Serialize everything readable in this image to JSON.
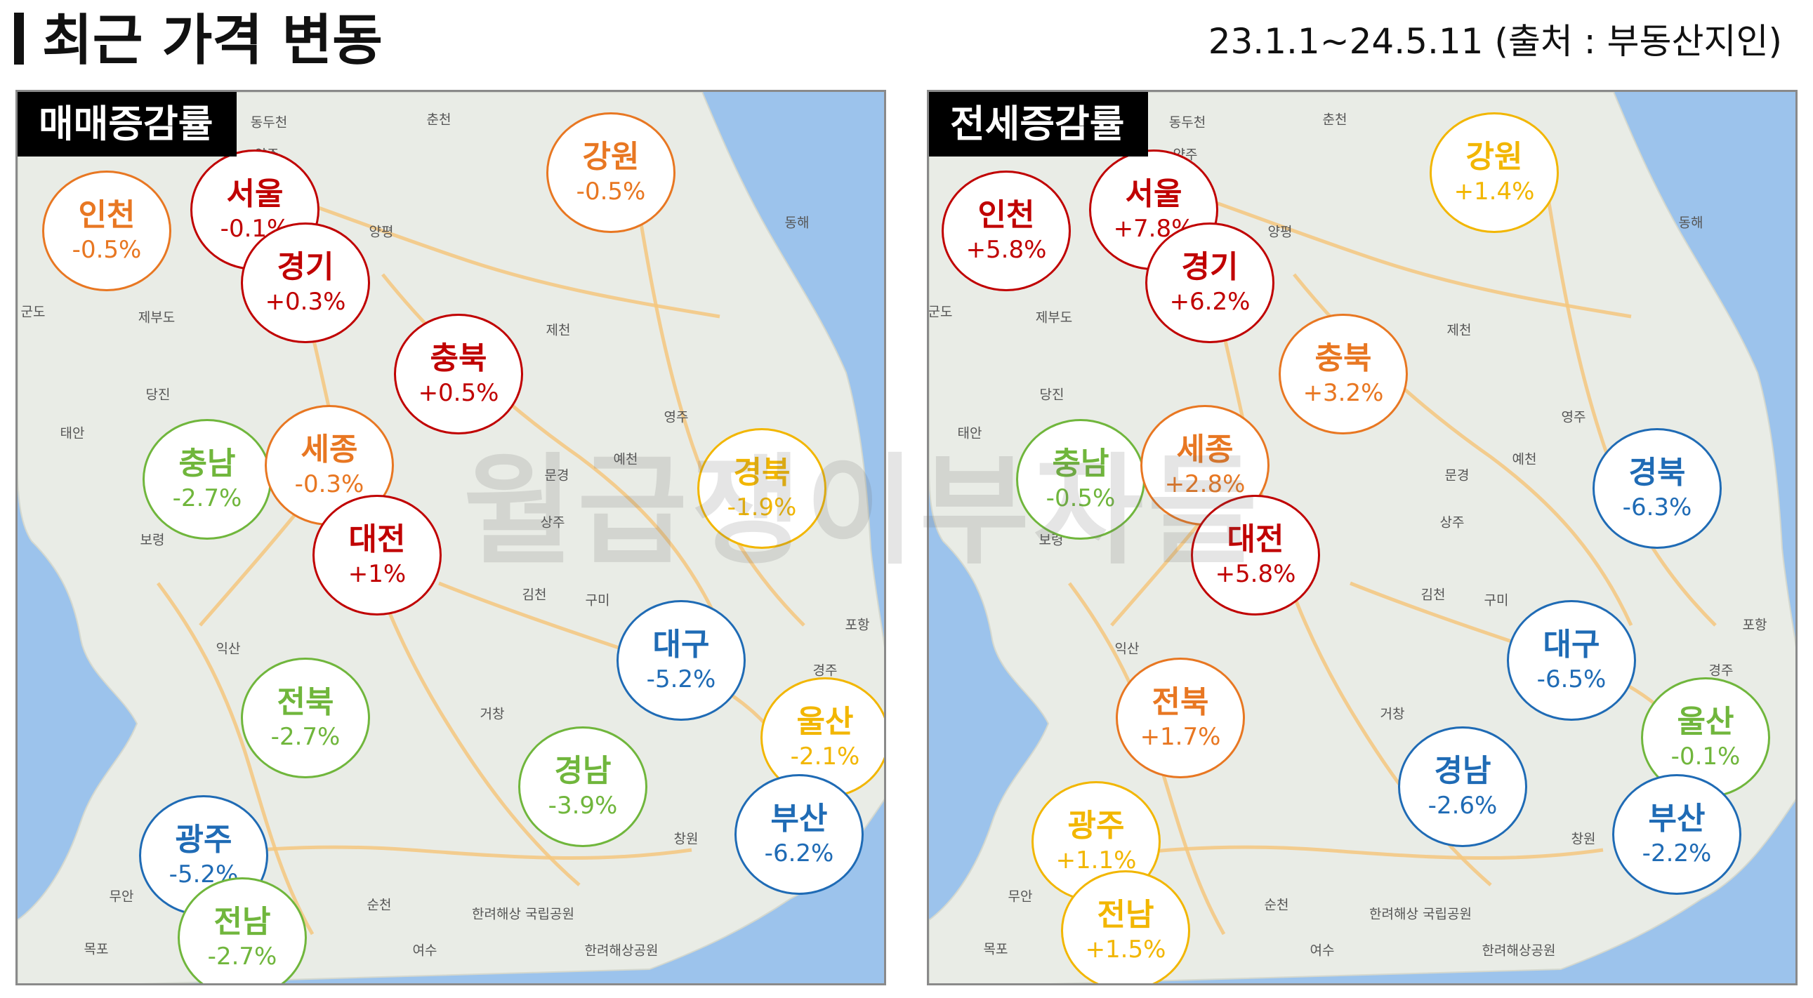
{
  "header": {
    "title": "최근 가격 변동",
    "period": "23.1.1~24.5.11 (출처 : 부동산지인)"
  },
  "watermark": "월급쟁이부자들",
  "colors": {
    "strong_up": "#c00000",
    "up": "#e87722",
    "neutral": "#f2b600",
    "down_mild": "#70b63c",
    "down": "#1f6bb5",
    "sea": "#9cc3ec",
    "land": "#e9ece6"
  },
  "place_names": [
    {
      "id": "dongducheon",
      "label": "동두천"
    },
    {
      "id": "yangju",
      "label": "양주"
    },
    {
      "id": "chuncheon",
      "label": "춘천"
    },
    {
      "id": "yangpyeong",
      "label": "양평"
    },
    {
      "id": "donghae",
      "label": "동해"
    },
    {
      "id": "gunsan-top",
      "label": "군도"
    },
    {
      "id": "jebudo",
      "label": "제부도"
    },
    {
      "id": "jecheon",
      "label": "제천"
    },
    {
      "id": "dangjin",
      "label": "당진"
    },
    {
      "id": "yeongju",
      "label": "영주"
    },
    {
      "id": "taean",
      "label": "태안"
    },
    {
      "id": "yecheon",
      "label": "예천"
    },
    {
      "id": "mungyeong",
      "label": "문경"
    },
    {
      "id": "sangju",
      "label": "상주"
    },
    {
      "id": "boryeong",
      "label": "보령"
    },
    {
      "id": "gimcheon",
      "label": "김천"
    },
    {
      "id": "gumi",
      "label": "구미"
    },
    {
      "id": "pohang",
      "label": "포항"
    },
    {
      "id": "iksan",
      "label": "익산"
    },
    {
      "id": "gyeongju",
      "label": "경주"
    },
    {
      "id": "geochang",
      "label": "거창"
    },
    {
      "id": "changwon",
      "label": "창원"
    },
    {
      "id": "muan",
      "label": "무안"
    },
    {
      "id": "suncheon",
      "label": "순천"
    },
    {
      "id": "mokpo",
      "label": "목포"
    },
    {
      "id": "yeosu",
      "label": "여수"
    },
    {
      "id": "hallyeo",
      "label": "한려해상 국립공원"
    },
    {
      "id": "hallyeo2",
      "label": "한려해상공원"
    }
  ],
  "panels": [
    {
      "id": "sale",
      "label": "매매증감률",
      "regions": [
        {
          "name": "강원",
          "value": "-0.5%",
          "color": "#e87722"
        },
        {
          "name": "인천",
          "value": "-0.5%",
          "color": "#e87722"
        },
        {
          "name": "서울",
          "value": "-0.1%",
          "color": "#c00000"
        },
        {
          "name": "경기",
          "value": "+0.3%",
          "color": "#c00000"
        },
        {
          "name": "충북",
          "value": "+0.5%",
          "color": "#c00000"
        },
        {
          "name": "충남",
          "value": "-2.7%",
          "color": "#70b63c"
        },
        {
          "name": "세종",
          "value": "-0.3%",
          "color": "#e87722"
        },
        {
          "name": "경북",
          "value": "-1.9%",
          "color": "#f2b600"
        },
        {
          "name": "대전",
          "value": "+1%",
          "color": "#c00000"
        },
        {
          "name": "대구",
          "value": "-5.2%",
          "color": "#1f6bb5"
        },
        {
          "name": "전북",
          "value": "-2.7%",
          "color": "#70b63c"
        },
        {
          "name": "울산",
          "value": "-2.1%",
          "color": "#f2b600"
        },
        {
          "name": "경남",
          "value": "-3.9%",
          "color": "#70b63c"
        },
        {
          "name": "부산",
          "value": "-6.2%",
          "color": "#1f6bb5"
        },
        {
          "name": "광주",
          "value": "-5.2%",
          "color": "#1f6bb5"
        },
        {
          "name": "전남",
          "value": "-2.7%",
          "color": "#70b63c"
        }
      ]
    },
    {
      "id": "jeonse",
      "label": "전세증감률",
      "regions": [
        {
          "name": "강원",
          "value": "+1.4%",
          "color": "#f2b600"
        },
        {
          "name": "인천",
          "value": "+5.8%",
          "color": "#c00000"
        },
        {
          "name": "서울",
          "value": "+7.8%",
          "color": "#c00000"
        },
        {
          "name": "경기",
          "value": "+6.2%",
          "color": "#c00000"
        },
        {
          "name": "충북",
          "value": "+3.2%",
          "color": "#e87722"
        },
        {
          "name": "충남",
          "value": "-0.5%",
          "color": "#70b63c"
        },
        {
          "name": "세종",
          "value": "+2.8%",
          "color": "#e87722"
        },
        {
          "name": "경북",
          "value": "-6.3%",
          "color": "#1f6bb5"
        },
        {
          "name": "대전",
          "value": "+5.8%",
          "color": "#c00000"
        },
        {
          "name": "대구",
          "value": "-6.5%",
          "color": "#1f6bb5"
        },
        {
          "name": "전북",
          "value": "+1.7%",
          "color": "#e87722"
        },
        {
          "name": "울산",
          "value": "-0.1%",
          "color": "#70b63c"
        },
        {
          "name": "경남",
          "value": "-2.6%",
          "color": "#1f6bb5"
        },
        {
          "name": "부산",
          "value": "-2.2%",
          "color": "#1f6bb5"
        },
        {
          "name": "광주",
          "value": "+1.1%",
          "color": "#f2b600"
        },
        {
          "name": "전남",
          "value": "+1.5%",
          "color": "#f2b600"
        }
      ]
    }
  ]
}
